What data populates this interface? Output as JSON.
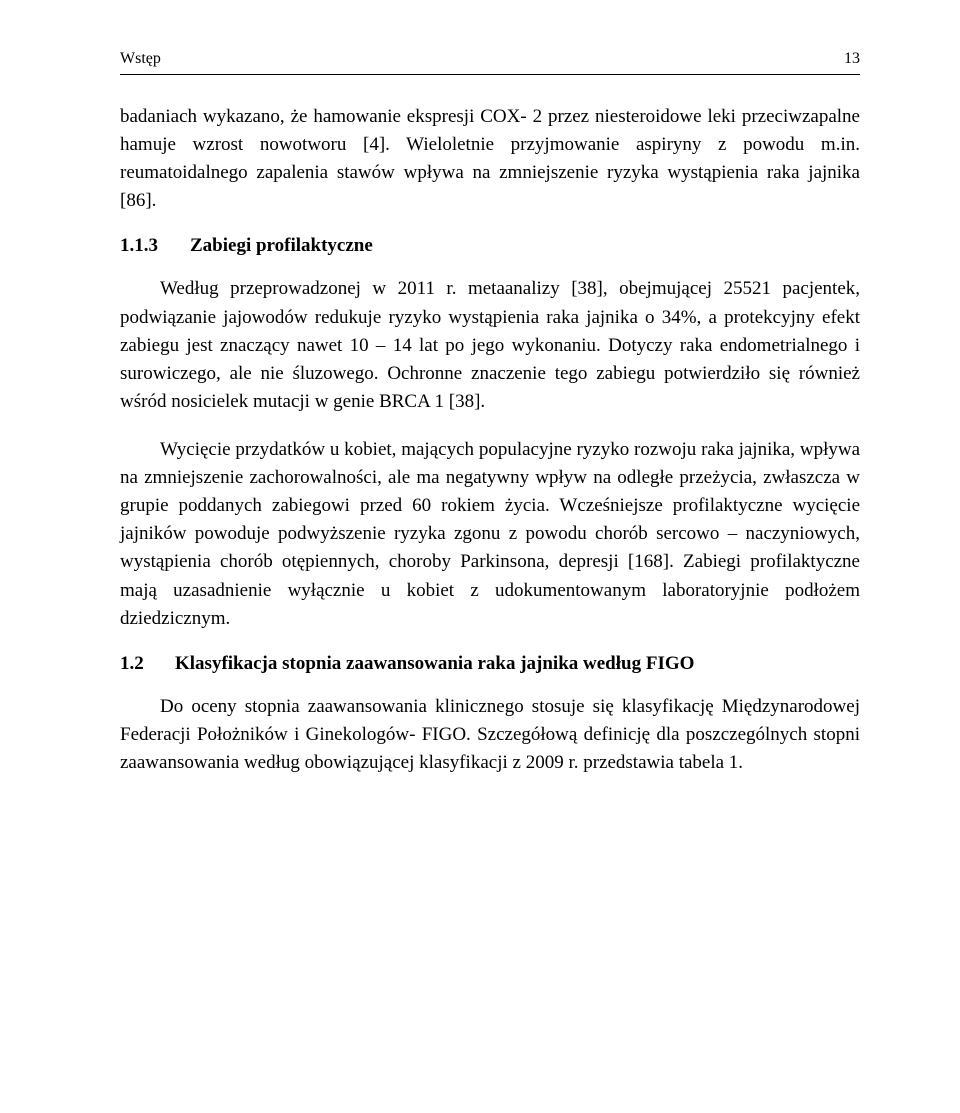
{
  "header": {
    "title": "Wstęp",
    "page_number": "13"
  },
  "paragraphs": {
    "p1": "badaniach wykazano, że hamowanie ekspresji COX- 2 przez niesteroidowe leki przeciwzapalne hamuje wzrost nowotworu [4]. Wieloletnie przyjmowanie aspiryny z powodu m.in. reumatoidalnego zapalenia stawów wpływa na zmniejszenie ryzyka wystąpienia raka jajnika [86].",
    "h113_num": "1.1.3",
    "h113_text": "Zabiegi profilaktyczne",
    "p2": "Według przeprowadzonej w 2011 r. metaanalizy [38], obejmującej 25521 pacjentek, podwiązanie jajowodów redukuje ryzyko wystąpienia raka jajnika o 34%, a protekcyjny efekt zabiegu jest znaczący nawet 10 – 14 lat po jego wykonaniu. Dotyczy raka endometrialnego i surowiczego, ale nie śluzowego. Ochronne znaczenie tego zabiegu potwierdziło się również wśród nosicielek mutacji w genie BRCA 1 [38].",
    "p3": "Wycięcie przydatków u kobiet, mających populacyjne ryzyko rozwoju raka jajnika, wpływa na zmniejszenie zachorowalności, ale ma negatywny wpływ na odległe przeżycia, zwłaszcza w grupie poddanych zabiegowi przed 60 rokiem życia. Wcześniejsze profilaktyczne wycięcie jajników powoduje podwyższenie ryzyka zgonu z powodu chorób sercowo – naczyniowych, wystąpienia chorób otępiennych, choroby Parkinsona, depresji [168]. Zabiegi profilaktyczne mają uzasadnienie wyłącznie u kobiet z udokumentowanym laboratoryjnie podłożem dziedzicznym.",
    "h12_num": "1.2",
    "h12_text": "Klasyfikacja stopnia zaawansowania raka jajnika według FIGO",
    "p4": "Do oceny stopnia zaawansowania klinicznego stosuje się klasyfikację Międzynarodowej Federacji Położników i Ginekologów- FIGO. Szczegółową definicję dla poszczególnych stopni zaawansowania według obowiązującej klasyfikacji z 2009 r. przedstawia tabela 1."
  },
  "typography": {
    "body_font_size": 19,
    "line_height": 1.48,
    "text_color": "#000000",
    "background_color": "#ffffff"
  }
}
